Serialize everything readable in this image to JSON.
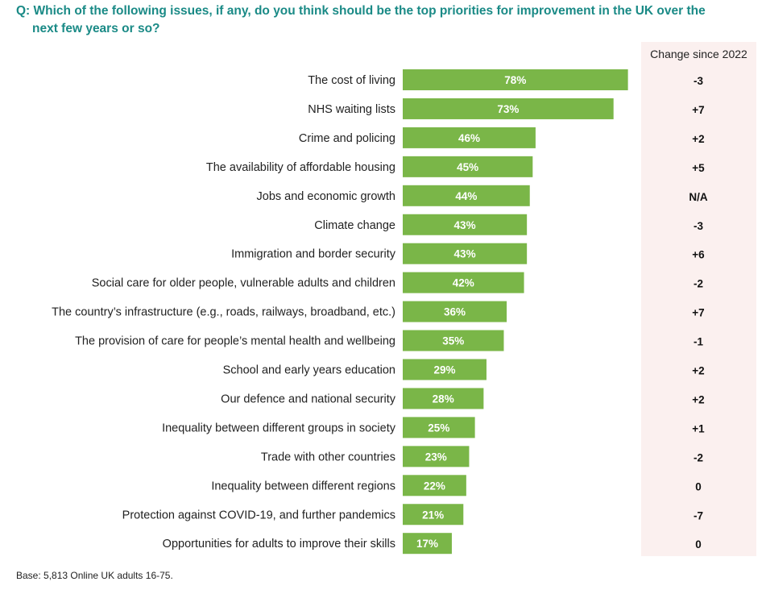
{
  "question": {
    "line1": "Q: Which of the following issues, if any, do you think should be the top priorities for improvement in the UK over the",
    "line2": "next few years or so?"
  },
  "change_header": "Change since 2022",
  "base_note": "Base: 5,813 Online UK adults 16-75.",
  "colors": {
    "bar": "#7ab648",
    "bar_text": "#ffffff",
    "question": "#1a8a86",
    "panel": "#fbf0ef"
  },
  "chart_data": {
    "type": "bar",
    "orientation": "horizontal",
    "title": "Q: Which of the following issues, if any, do you think should be the top priorities for improvement in the UK over the next few years or so?",
    "categories": [
      "The cost of living",
      "NHS waiting lists",
      "Crime and policing",
      "The availability of affordable housing",
      "Jobs and economic growth",
      "Climate change",
      "Immigration and border security",
      "Social care for older people, vulnerable adults and children",
      "The country’s infrastructure (e.g., roads, railways, broadband, etc.)",
      "The provision of care for people’s mental health and wellbeing",
      "School and early years education",
      "Our defence and national security",
      "Inequality between different groups in society",
      "Trade with other countries",
      "Inequality between different regions",
      "Protection against COVID-19, and further pandemics",
      "Opportunities for adults to improve their skills"
    ],
    "values": [
      78,
      73,
      46,
      45,
      44,
      43,
      43,
      42,
      36,
      35,
      29,
      28,
      25,
      23,
      22,
      21,
      17
    ],
    "value_labels": [
      "78%",
      "73%",
      "46%",
      "45%",
      "44%",
      "43%",
      "43%",
      "42%",
      "36%",
      "35%",
      "29%",
      "28%",
      "25%",
      "23%",
      "22%",
      "21%",
      "17%"
    ],
    "change_since_2022": [
      "-3",
      "+7",
      "+2",
      "+5",
      "N/A",
      "-3",
      "+6",
      "-2",
      "+7",
      "-1",
      "+2",
      "+2",
      "+1",
      "-2",
      "0",
      "-7",
      "0"
    ],
    "xlim": [
      0,
      100
    ],
    "xlabel": "",
    "ylabel": ""
  }
}
